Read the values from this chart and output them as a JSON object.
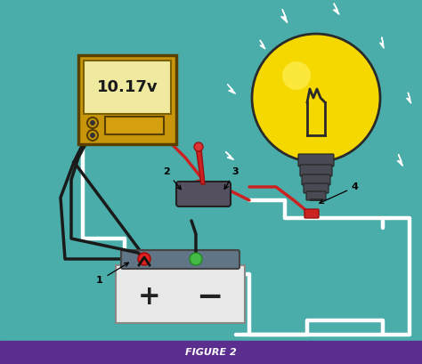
{
  "bg_color": "#4AADAA",
  "footer_color": "#5B2D8E",
  "footer_text": "FIGURE 2",
  "footer_text_color": "#FFFFFF",
  "multimeter_reading": "10.17v",
  "label_1": "1",
  "label_2": "2",
  "label_3": "3",
  "label_4": "4",
  "wire_white": "#FFFFFF",
  "wire_red": "#CC2222",
  "wire_black": "#1A1A1A",
  "battery_body": "#E8E8E8",
  "battery_shell": "#607585",
  "bulb_yellow": "#F5D800",
  "bulb_base_color": "#4A4A55",
  "meter_body": "#C8960A",
  "meter_screen": "#F0EAA0",
  "switch_body": "#555060",
  "switch_handle": "#CC2222"
}
